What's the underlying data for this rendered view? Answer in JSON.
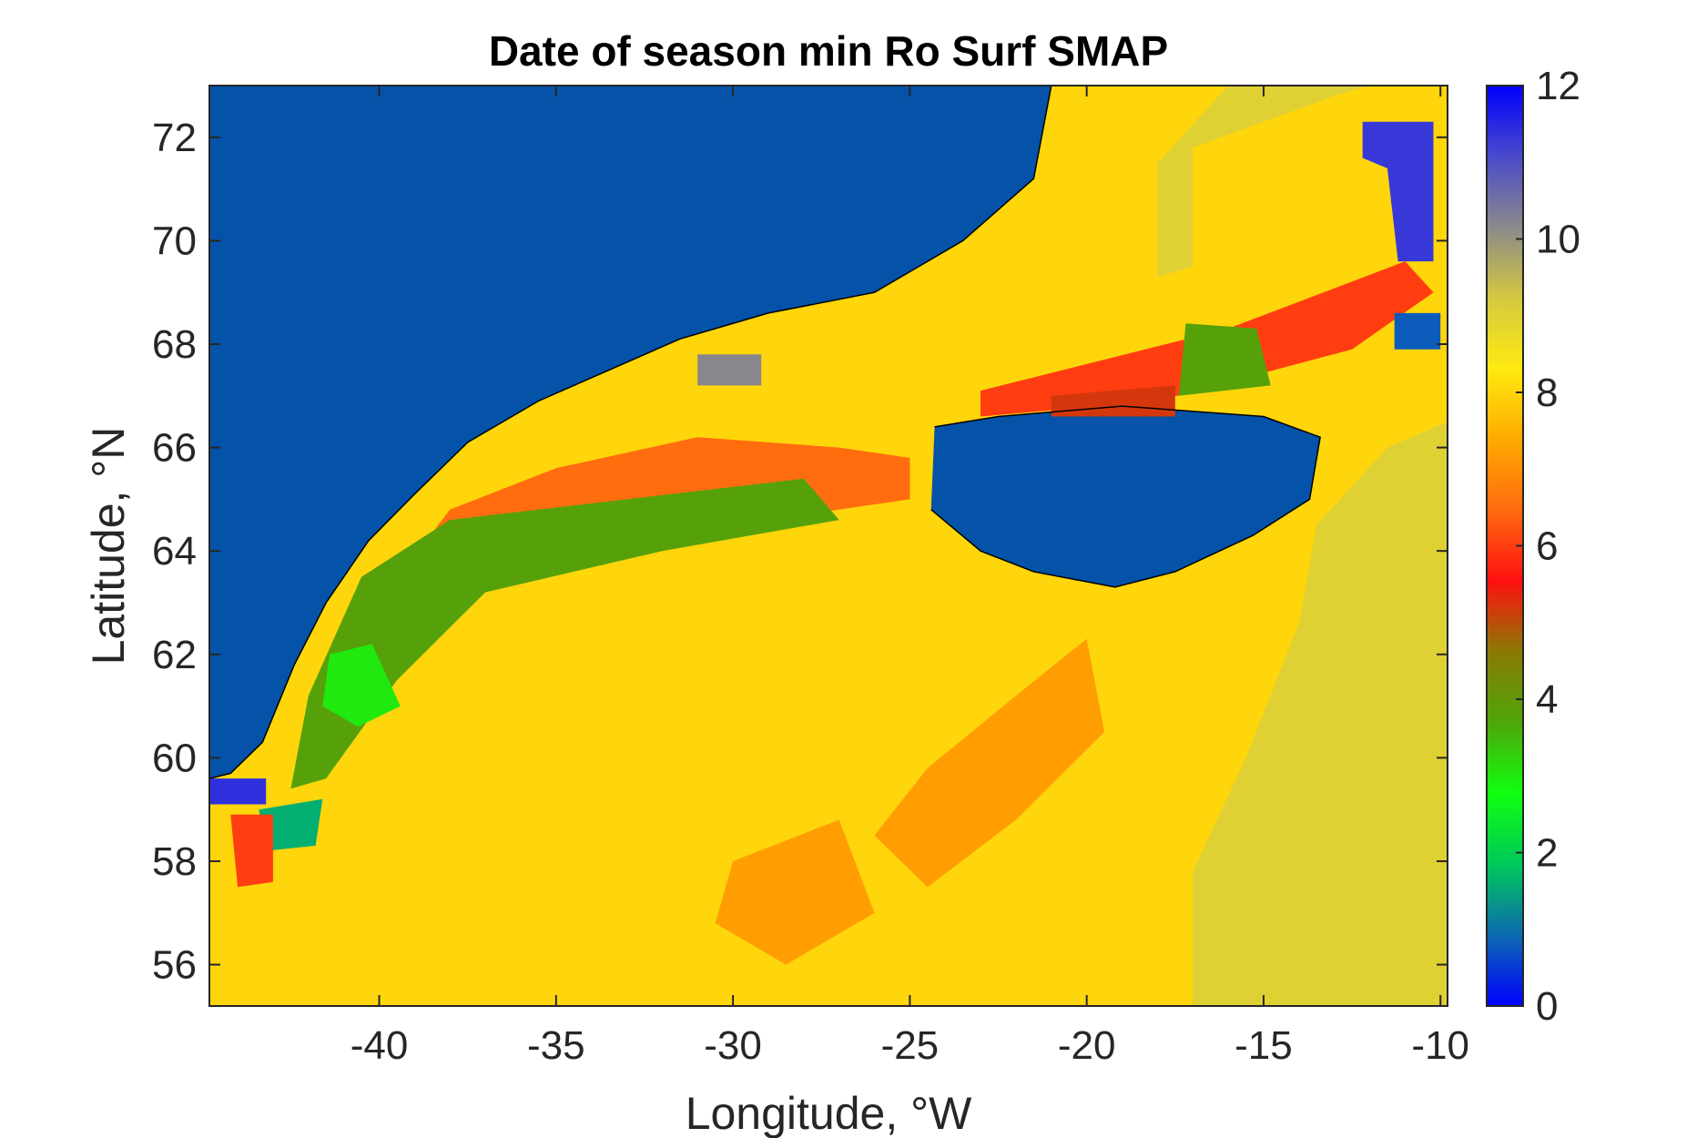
{
  "chart_data": {
    "type": "heatmap",
    "title": "Date of season min Ro Surf SMAP",
    "xlabel": "Longitude, °W",
    "ylabel": "Latitude, °N",
    "xlim": [
      -44.8,
      -9.8
    ],
    "ylim": [
      55.2,
      73
    ],
    "xticks": [
      -40,
      -35,
      -30,
      -25,
      -20,
      -15,
      -10
    ],
    "yticks": [
      56,
      58,
      60,
      62,
      64,
      66,
      68,
      70,
      72
    ],
    "colorbar": {
      "range": [
        0,
        12
      ],
      "ticks": [
        0,
        2,
        4,
        6,
        8,
        10,
        12
      ],
      "colors": [
        "#0000ff",
        "#0d6ab0",
        "#00c85a",
        "#10ff10",
        "#4fa60a",
        "#8a7a05",
        "#ff1010",
        "#ff6a10",
        "#ffaa00",
        "#ffea10",
        "#d4c840",
        "#8a8a8a",
        "#4a4acc",
        "#0000ff"
      ]
    },
    "land_color": "#0453a8",
    "coastline_color": "#000000",
    "regions": [
      {
        "label": "Greenland land mask",
        "value": null,
        "polygon": [
          [
            -44.8,
            73
          ],
          [
            -21,
            73
          ],
          [
            -21.5,
            71.2
          ],
          [
            -23.5,
            70
          ],
          [
            -26,
            69
          ],
          [
            -29,
            68.6
          ],
          [
            -31.5,
            68.1
          ],
          [
            -33.5,
            67.5
          ],
          [
            -35.5,
            66.9
          ],
          [
            -37.5,
            66.1
          ],
          [
            -39,
            65.1
          ],
          [
            -40.3,
            64.2
          ],
          [
            -41.5,
            63
          ],
          [
            -42.4,
            61.8
          ],
          [
            -43.3,
            60.3
          ],
          [
            -44.2,
            59.7
          ],
          [
            -44.8,
            59.6
          ]
        ]
      },
      {
        "label": "Iceland land mask",
        "value": null,
        "polygon": [
          [
            -24.3,
            66.4
          ],
          [
            -22.5,
            66.6
          ],
          [
            -19,
            66.8
          ],
          [
            -15,
            66.6
          ],
          [
            -13.4,
            66.2
          ],
          [
            -13.7,
            65
          ],
          [
            -15.3,
            64.3
          ],
          [
            -17.5,
            63.6
          ],
          [
            -19.2,
            63.3
          ],
          [
            -21.5,
            63.6
          ],
          [
            -23,
            64
          ],
          [
            -24.4,
            64.8
          ]
        ]
      },
      {
        "label": "Shelf-break band north",
        "value": 6.5,
        "polygon": [
          [
            -38,
            64.8
          ],
          [
            -35,
            65.6
          ],
          [
            -31,
            66.2
          ],
          [
            -27,
            66
          ],
          [
            -25,
            65.8
          ],
          [
            -25,
            65
          ],
          [
            -29,
            64.6
          ],
          [
            -33,
            64
          ],
          [
            -37,
            63.6
          ],
          [
            -40,
            63
          ]
        ]
      },
      {
        "label": "Shelf-break green band",
        "value": 3.8,
        "polygon": [
          [
            -40.5,
            63.5
          ],
          [
            -38,
            64.6
          ],
          [
            -33,
            65
          ],
          [
            -28,
            65.4
          ],
          [
            -27,
            64.6
          ],
          [
            -32,
            64
          ],
          [
            -37,
            63.2
          ],
          [
            -39.5,
            61.5
          ],
          [
            -41.5,
            59.6
          ],
          [
            -42.5,
            59.4
          ],
          [
            -42,
            61.2
          ]
        ]
      },
      {
        "label": "Shelf bright green",
        "value": 3.0,
        "polygon": [
          [
            -41.4,
            62
          ],
          [
            -40.2,
            62.2
          ],
          [
            -39.4,
            61
          ],
          [
            -40.6,
            60.6
          ],
          [
            -41.6,
            61
          ]
        ]
      },
      {
        "label": "Coastal teal patch",
        "value": 1.6,
        "polygon": [
          [
            -43.4,
            59
          ],
          [
            -41.6,
            59.2
          ],
          [
            -41.8,
            58.3
          ],
          [
            -43.2,
            58.2
          ]
        ]
      },
      {
        "label": "Southern red patch",
        "value": 6.0,
        "polygon": [
          [
            -44.2,
            58.9
          ],
          [
            -43,
            58.9
          ],
          [
            -43,
            57.6
          ],
          [
            -44,
            57.5
          ]
        ]
      },
      {
        "label": "Purple coastal strip",
        "value": 11.4,
        "polygon": [
          [
            -44.8,
            59.6
          ],
          [
            -43.2,
            59.6
          ],
          [
            -43.2,
            59.1
          ],
          [
            -44.8,
            59.1
          ]
        ]
      },
      {
        "label": "Gray patch north",
        "value": 10.2,
        "polygon": [
          [
            -31,
            67.8
          ],
          [
            -29.2,
            67.8
          ],
          [
            -29.2,
            67.2
          ],
          [
            -31,
            67.2
          ]
        ]
      },
      {
        "label": "Red band north of Iceland",
        "value": 6.0,
        "polygon": [
          [
            -23,
            67.1
          ],
          [
            -16,
            68.3
          ],
          [
            -11,
            69.6
          ],
          [
            -10.2,
            69
          ],
          [
            -12.5,
            67.9
          ],
          [
            -18,
            66.9
          ],
          [
            -23,
            66.6
          ]
        ]
      },
      {
        "label": "Green patch north of Iceland",
        "value": 3.8,
        "polygon": [
          [
            -17.2,
            68.4
          ],
          [
            -15.2,
            68.3
          ],
          [
            -14.8,
            67.2
          ],
          [
            -17.4,
            67
          ]
        ]
      },
      {
        "label": "Brown patch north of Iceland",
        "value": 5.2,
        "polygon": [
          [
            -21,
            67
          ],
          [
            -17.5,
            67.2
          ],
          [
            -17.5,
            66.6
          ],
          [
            -21,
            66.6
          ]
        ]
      },
      {
        "label": "Purple patch NE",
        "value": 11.3,
        "polygon": [
          [
            -12.2,
            72.3
          ],
          [
            -10.2,
            72.3
          ],
          [
            -10.2,
            69.6
          ],
          [
            -11.2,
            69.6
          ],
          [
            -11.5,
            71.4
          ],
          [
            -12.2,
            71.6
          ]
        ]
      },
      {
        "label": "Blue patch NE",
        "value": 0.8,
        "polygon": [
          [
            -11.3,
            68.6
          ],
          [
            -10,
            68.6
          ],
          [
            -10,
            67.9
          ],
          [
            -11.3,
            67.9
          ]
        ]
      },
      {
        "label": "Yellow SE region",
        "value": 9.0,
        "polygon": [
          [
            -9.8,
            66.5
          ],
          [
            -9.8,
            55.2
          ],
          [
            -17,
            55.2
          ],
          [
            -17,
            57.8
          ],
          [
            -15.5,
            60
          ],
          [
            -14,
            62.6
          ],
          [
            -13.5,
            64.5
          ],
          [
            -11.5,
            66
          ]
        ]
      },
      {
        "label": "Yellow NE region",
        "value": 9.0,
        "polygon": [
          [
            -17,
            71.8
          ],
          [
            -13,
            72.8
          ],
          [
            -12,
            73
          ],
          [
            -16,
            73
          ],
          [
            -18,
            71.5
          ],
          [
            -18,
            69.3
          ],
          [
            -17,
            69.5
          ]
        ]
      },
      {
        "label": "Orange-red band central",
        "value": 7.2,
        "polygon": [
          [
            -24.5,
            59.8
          ],
          [
            -22,
            61.2
          ],
          [
            -20,
            62.3
          ],
          [
            -19.5,
            60.5
          ],
          [
            -22,
            58.8
          ],
          [
            -24.5,
            57.5
          ],
          [
            -26,
            58.5
          ]
        ]
      },
      {
        "label": "Orange-red band south",
        "value": 7.2,
        "polygon": [
          [
            -30,
            58
          ],
          [
            -27,
            58.8
          ],
          [
            -26,
            57
          ],
          [
            -28.5,
            56
          ],
          [
            -30.5,
            56.8
          ]
        ]
      }
    ]
  }
}
